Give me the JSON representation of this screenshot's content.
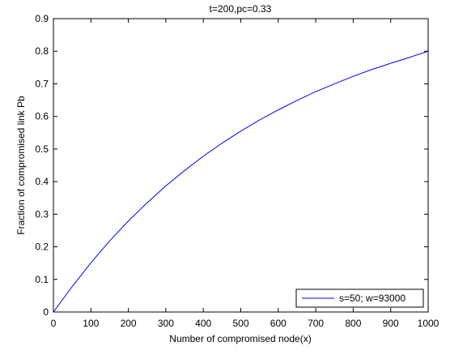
{
  "chart_data": {
    "type": "line",
    "title": "t=200,pc=0.33",
    "xlabel": "Number of compromised node(x)",
    "ylabel": "Fraction of compromised link Pb",
    "xlim": [
      0,
      1000
    ],
    "ylim": [
      0,
      0.9
    ],
    "xticks": [
      0,
      100,
      200,
      300,
      400,
      500,
      600,
      700,
      800,
      900,
      1000
    ],
    "yticks": [
      0,
      0.1,
      0.2,
      0.3,
      0.4,
      0.5,
      0.6,
      0.7,
      0.8,
      0.9
    ],
    "xtick_labels": [
      "0",
      "100",
      "200",
      "300",
      "400",
      "500",
      "600",
      "700",
      "800",
      "900",
      "1000"
    ],
    "ytick_labels": [
      "0",
      "0.1",
      "0.2",
      "0.3",
      "0.4",
      "0.5",
      "0.6",
      "0.7",
      "0.8",
      "0.9"
    ],
    "grid": false,
    "legend_position": "bottom-right",
    "series": [
      {
        "name": "s=50; w=93000",
        "color": "#0000ff",
        "x": [
          0,
          50,
          100,
          150,
          200,
          250,
          300,
          350,
          400,
          450,
          500,
          550,
          600,
          650,
          700,
          750,
          800,
          850,
          900,
          950,
          1000
        ],
        "y": [
          0,
          0.078,
          0.151,
          0.218,
          0.279,
          0.335,
          0.387,
          0.434,
          0.478,
          0.518,
          0.555,
          0.589,
          0.62,
          0.649,
          0.676,
          0.7,
          0.723,
          0.744,
          0.763,
          0.781,
          0.8
        ]
      }
    ]
  }
}
